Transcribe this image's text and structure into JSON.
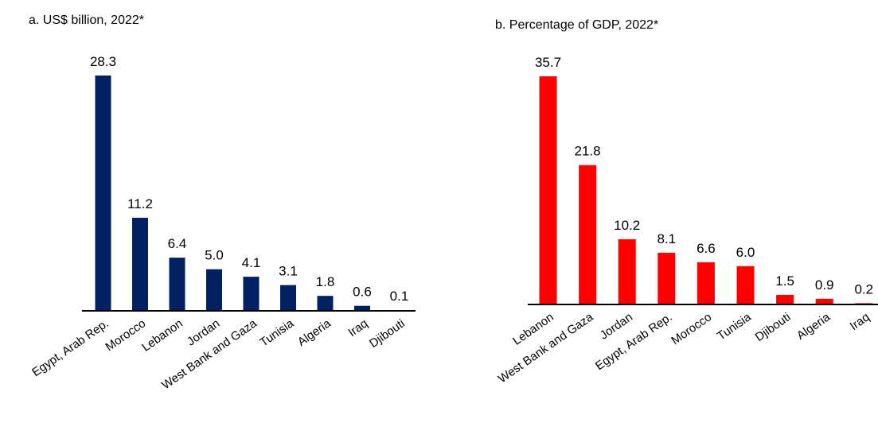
{
  "chart_data": [
    {
      "type": "bar",
      "title": "a. US$ billion, 2022*",
      "categories": [
        "Egypt, Arab Rep.",
        "Morocco",
        "Lebanon",
        "Jordan",
        "West Bank and Gaza",
        "Tunisia",
        "Algeria",
        "Iraq",
        "Djibouti"
      ],
      "values": [
        28.3,
        11.2,
        6.4,
        5.0,
        4.1,
        3.1,
        1.8,
        0.6,
        0.1
      ],
      "value_labels": [
        "28.3",
        "11.2",
        "6.4",
        "5.0",
        "4.1",
        "3.1",
        "1.8",
        "0.6",
        "0.1"
      ],
      "color": "#002060",
      "ylim": [
        0,
        28.3
      ],
      "grid": false
    },
    {
      "type": "bar",
      "title": "b. Percentage of GDP, 2022*",
      "categories": [
        "Lebanon",
        "West Bank and Gaza",
        "Jordan",
        "Egypt, Arab Rep.",
        "Morocco",
        "Tunisia",
        "Djibouti",
        "Algeria",
        "Iraq"
      ],
      "values": [
        35.7,
        21.8,
        10.2,
        8.1,
        6.6,
        6.0,
        1.5,
        0.9,
        0.2
      ],
      "value_labels": [
        "35.7",
        "21.8",
        "10.2",
        "8.1",
        "6.6",
        "6.0",
        "1.5",
        "0.9",
        "0.2"
      ],
      "color": "#ff0000",
      "ylim": [
        0,
        35.7
      ],
      "grid": false
    }
  ]
}
